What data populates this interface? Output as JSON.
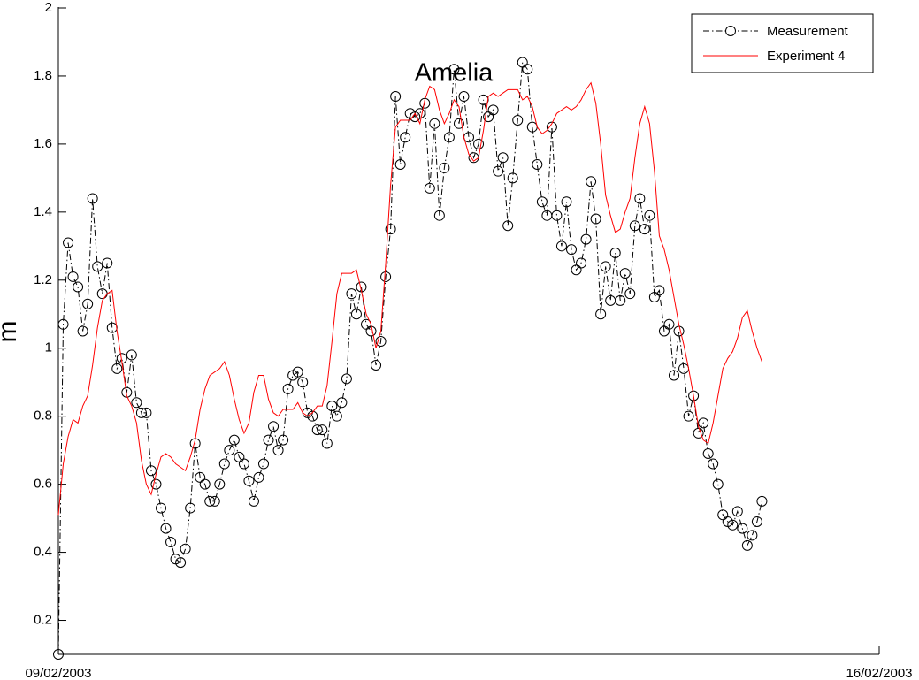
{
  "chart_data": {
    "type": "line",
    "title": "Amelia",
    "ylabel": "m",
    "xlim": [
      0,
      168
    ],
    "xticks": [
      {
        "value": 0,
        "label": "09/02/2003"
      },
      {
        "value": 168,
        "label": "16/02/2003"
      }
    ],
    "ylim": [
      0.1,
      2
    ],
    "yticks": [
      0.2,
      0.4,
      0.6,
      0.8,
      1,
      1.2,
      1.4,
      1.6,
      1.8,
      2
    ],
    "legend": "upper right",
    "x": [
      0,
      1,
      2,
      3,
      4,
      5,
      6,
      7,
      8,
      9,
      10,
      11,
      12,
      13,
      14,
      15,
      16,
      17,
      18,
      19,
      20,
      21,
      22,
      23,
      24,
      25,
      26,
      27,
      28,
      29,
      30,
      31,
      32,
      33,
      34,
      35,
      36,
      37,
      38,
      39,
      40,
      41,
      42,
      43,
      44,
      45,
      46,
      47,
      48,
      49,
      50,
      51,
      52,
      53,
      54,
      55,
      56,
      57,
      58,
      59,
      60,
      61,
      62,
      63,
      64,
      65,
      66,
      67,
      68,
      69,
      70,
      71,
      72,
      73,
      74,
      75,
      76,
      77,
      78,
      79,
      80,
      81,
      82,
      83,
      84,
      85,
      86,
      87,
      88,
      89,
      90,
      91,
      92,
      93,
      94,
      95,
      96,
      97,
      98,
      99,
      100,
      101,
      102,
      103,
      104,
      105,
      106,
      107,
      108,
      109,
      110,
      111,
      112,
      113,
      114,
      115,
      116,
      117,
      118,
      119,
      120,
      121,
      122,
      123,
      124,
      125,
      126,
      127,
      128,
      129,
      130,
      131,
      132,
      133,
      134,
      135,
      136,
      137,
      138,
      139,
      140,
      141,
      142,
      143,
      144
    ],
    "series": [
      {
        "name": "Measurement",
        "color": "#000000",
        "marker": "o",
        "linestyle": "-.",
        "values": [
          0.1,
          1.07,
          1.31,
          1.21,
          1.18,
          1.05,
          1.13,
          1.44,
          1.24,
          1.16,
          1.25,
          1.06,
          0.94,
          0.97,
          0.87,
          0.98,
          0.84,
          0.81,
          0.81,
          0.64,
          0.6,
          0.53,
          0.47,
          0.43,
          0.38,
          0.37,
          0.41,
          0.53,
          0.72,
          0.62,
          0.6,
          0.55,
          0.55,
          0.6,
          0.66,
          0.7,
          0.73,
          0.68,
          0.66,
          0.61,
          0.55,
          0.62,
          0.66,
          0.73,
          0.77,
          0.7,
          0.73,
          0.88,
          0.92,
          0.93,
          0.9,
          0.81,
          0.8,
          0.76,
          0.76,
          0.72,
          0.83,
          0.8,
          0.84,
          0.91,
          1.16,
          1.1,
          1.18,
          1.07,
          1.05,
          0.95,
          1.02,
          1.21,
          1.35,
          1.74,
          1.54,
          1.62,
          1.69,
          1.68,
          1.69,
          1.72,
          1.47,
          1.66,
          1.39,
          1.53,
          1.62,
          1.82,
          1.66,
          1.74,
          1.62,
          1.56,
          1.6,
          1.73,
          1.68,
          1.7,
          1.52,
          1.56,
          1.36,
          1.5,
          1.67,
          1.84,
          1.82,
          1.65,
          1.54,
          1.43,
          1.39,
          1.65,
          1.39,
          1.3,
          1.43,
          1.29,
          1.23,
          1.25,
          1.32,
          1.49,
          1.38,
          1.1,
          1.24,
          1.14,
          1.28,
          1.14,
          1.22,
          1.16,
          1.36,
          1.44,
          1.35,
          1.39,
          1.15,
          1.17,
          1.05,
          1.07,
          0.92,
          1.05,
          0.94,
          0.8,
          0.86,
          0.75,
          0.78,
          0.69,
          0.66,
          0.6,
          0.51,
          0.49,
          0.48,
          0.52,
          0.47,
          0.42,
          0.45,
          0.49,
          0.55
        ]
      },
      {
        "name": "Experiment 4",
        "color": "#ff0000",
        "linestyle": "-",
        "values": [
          0.51,
          0.66,
          0.74,
          0.79,
          0.78,
          0.83,
          0.86,
          0.95,
          1.06,
          1.14,
          1.16,
          1.17,
          1.05,
          0.96,
          0.86,
          0.83,
          0.78,
          0.67,
          0.6,
          0.57,
          0.63,
          0.68,
          0.69,
          0.68,
          0.66,
          0.65,
          0.64,
          0.68,
          0.73,
          0.82,
          0.88,
          0.92,
          0.93,
          0.94,
          0.96,
          0.92,
          0.85,
          0.79,
          0.75,
          0.78,
          0.87,
          0.92,
          0.92,
          0.85,
          0.81,
          0.8,
          0.82,
          0.82,
          0.82,
          0.84,
          0.81,
          0.8,
          0.81,
          0.83,
          0.83,
          0.89,
          1.02,
          1.16,
          1.22,
          1.22,
          1.22,
          1.23,
          1.17,
          1.1,
          1.07,
          1.0,
          1.05,
          1.25,
          1.48,
          1.65,
          1.67,
          1.67,
          1.67,
          1.69,
          1.66,
          1.73,
          1.77,
          1.76,
          1.7,
          1.66,
          1.69,
          1.73,
          1.71,
          1.62,
          1.57,
          1.55,
          1.56,
          1.64,
          1.74,
          1.75,
          1.74,
          1.75,
          1.76,
          1.76,
          1.76,
          1.73,
          1.74,
          1.71,
          1.65,
          1.63,
          1.64,
          1.66,
          1.69,
          1.7,
          1.71,
          1.7,
          1.71,
          1.73,
          1.76,
          1.78,
          1.72,
          1.6,
          1.45,
          1.39,
          1.34,
          1.35,
          1.4,
          1.44,
          1.56,
          1.66,
          1.71,
          1.66,
          1.52,
          1.33,
          1.29,
          1.23,
          1.15,
          1.07,
          1.01,
          0.94,
          0.86,
          0.77,
          0.73,
          0.72,
          0.78,
          0.86,
          0.94,
          0.97,
          0.99,
          1.03,
          1.09,
          1.11,
          1.05,
          1.0,
          0.96
        ]
      }
    ]
  }
}
